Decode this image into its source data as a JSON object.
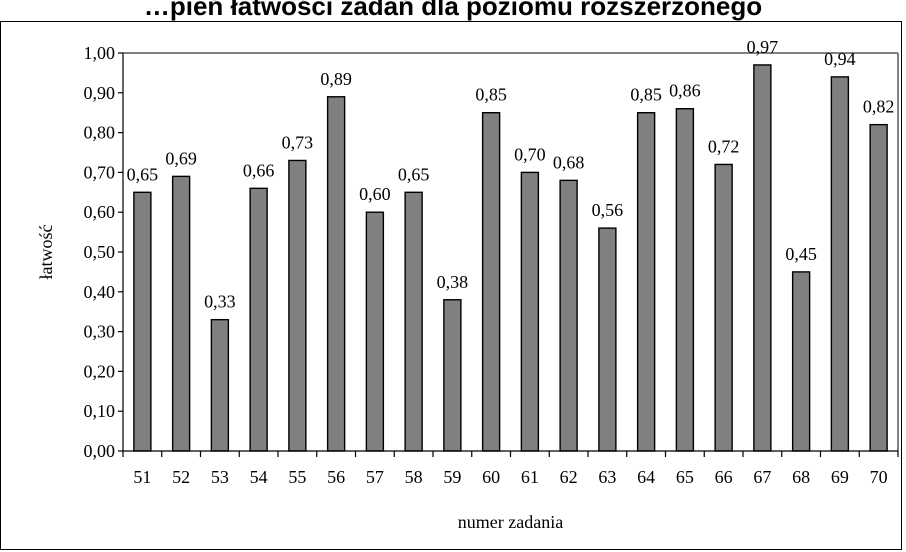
{
  "title": "…pień łatwości zadań dla poziomu rozszerzonego",
  "chart_data": {
    "type": "bar",
    "title": "…pień łatwości zadań dla poziomu rozszerzonego",
    "xlabel": "numer zadania",
    "ylabel": "łatwość",
    "categories": [
      "51",
      "52",
      "53",
      "54",
      "55",
      "56",
      "57",
      "58",
      "59",
      "60",
      "61",
      "62",
      "63",
      "64",
      "65",
      "66",
      "67",
      "68",
      "69",
      "70"
    ],
    "values": [
      0.65,
      0.69,
      0.33,
      0.66,
      0.73,
      0.89,
      0.6,
      0.65,
      0.38,
      0.85,
      0.7,
      0.68,
      0.56,
      0.85,
      0.86,
      0.72,
      0.97,
      0.45,
      0.94,
      0.82
    ],
    "value_labels": [
      "0,65",
      "0,69",
      "0,33",
      "0,66",
      "0,73",
      "0,89",
      "0,60",
      "0,65",
      "0,38",
      "0,85",
      "0,70",
      "0,68",
      "0,56",
      "0,85",
      "0,86",
      "0,72",
      "0,97",
      "0,45",
      "0,94",
      "0,82"
    ],
    "y_tick_labels": [
      "0,00",
      "0,10",
      "0,20",
      "0,30",
      "0,40",
      "0,50",
      "0,60",
      "0,70",
      "0,80",
      "0,90",
      "1,00"
    ],
    "ylim": [
      0,
      1.0
    ],
    "grid": false,
    "colors": {
      "bar_fill": "#808080",
      "bar_stroke": "#000000",
      "plot_border": "#808080"
    }
  }
}
